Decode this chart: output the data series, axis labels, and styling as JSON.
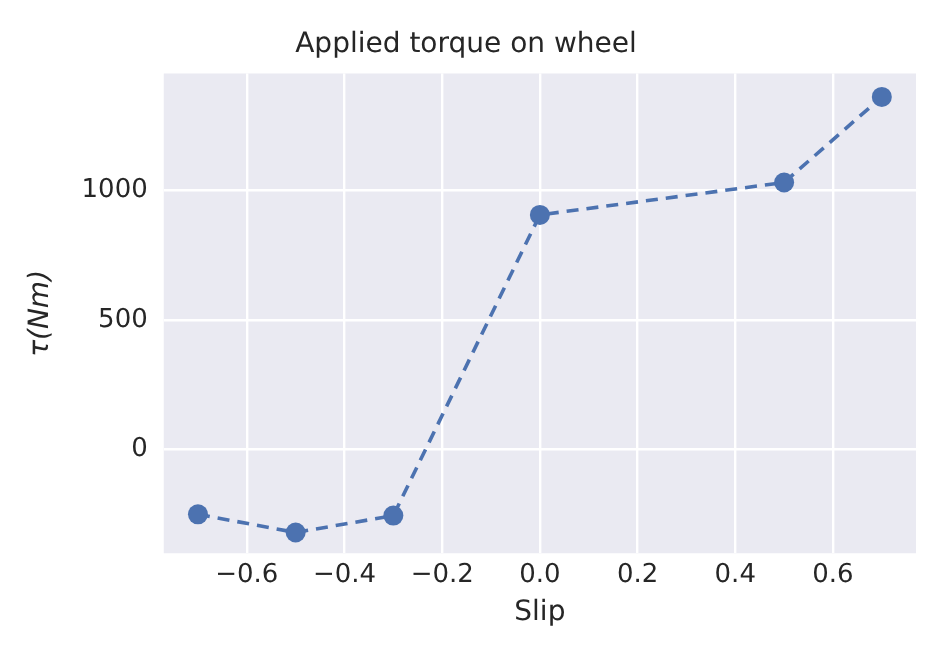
{
  "chart_data": {
    "type": "line",
    "title": "Applied torque on wheel",
    "xlabel": "Slip",
    "ylabel": "τ(Nm)",
    "x": [
      -0.7,
      -0.5,
      -0.3,
      0.0,
      0.5,
      0.7
    ],
    "series": [
      {
        "color": "#4c72b0",
        "values": [
          -250,
          -320,
          -255,
          905,
          1030,
          1360
        ]
      }
    ],
    "xlim": [
      -0.77,
      0.77
    ],
    "xticks": [
      {
        "value": -0.6,
        "label": "−0.6"
      },
      {
        "value": -0.4,
        "label": "−0.4"
      },
      {
        "value": -0.2,
        "label": "−0.2"
      },
      {
        "value": 0,
        "label": "0.0"
      },
      {
        "value": 0.2,
        "label": "0.2"
      },
      {
        "value": 0.4,
        "label": "0.4"
      },
      {
        "value": 0.6,
        "label": "0.6"
      }
    ],
    "ylim": [
      -400,
      1450
    ],
    "yticks": [
      0,
      500,
      1000
    ],
    "grid": true,
    "legend": false,
    "marker": "circle",
    "line_style": "dashed"
  }
}
